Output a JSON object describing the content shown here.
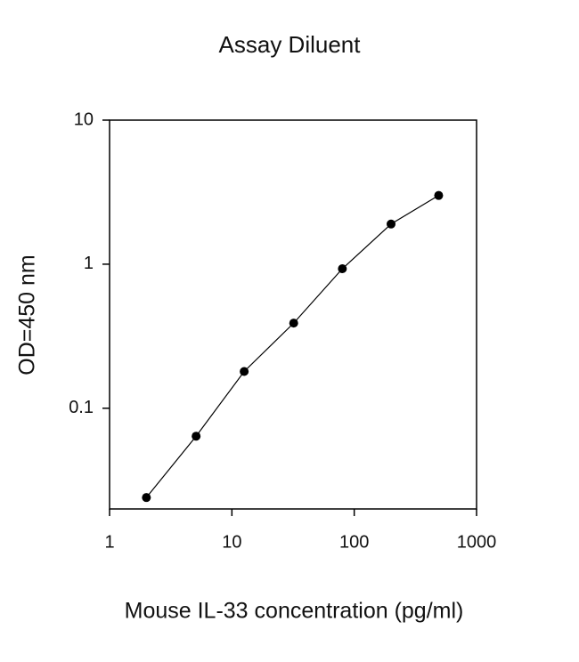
{
  "chart_data": {
    "type": "line",
    "title": "Assay Diluent",
    "x_label": "Mouse IL-33 concentration (pg/ml)",
    "y_label": "OD=450 nm",
    "x": [
      2,
      5.1,
      12.6,
      32,
      80,
      200,
      490
    ],
    "series": [
      {
        "values": [
          0.024,
          0.064,
          0.18,
          0.39,
          0.93,
          1.9,
          3.0
        ],
        "color": "#000000"
      }
    ],
    "xscale": "log",
    "yscale": "log",
    "xlim": [
      1,
      1000
    ],
    "xticks": [
      1,
      10,
      100,
      1000
    ],
    "ylim": [
      0.02,
      10
    ],
    "yticks": [
      0.1,
      1,
      10
    ]
  }
}
